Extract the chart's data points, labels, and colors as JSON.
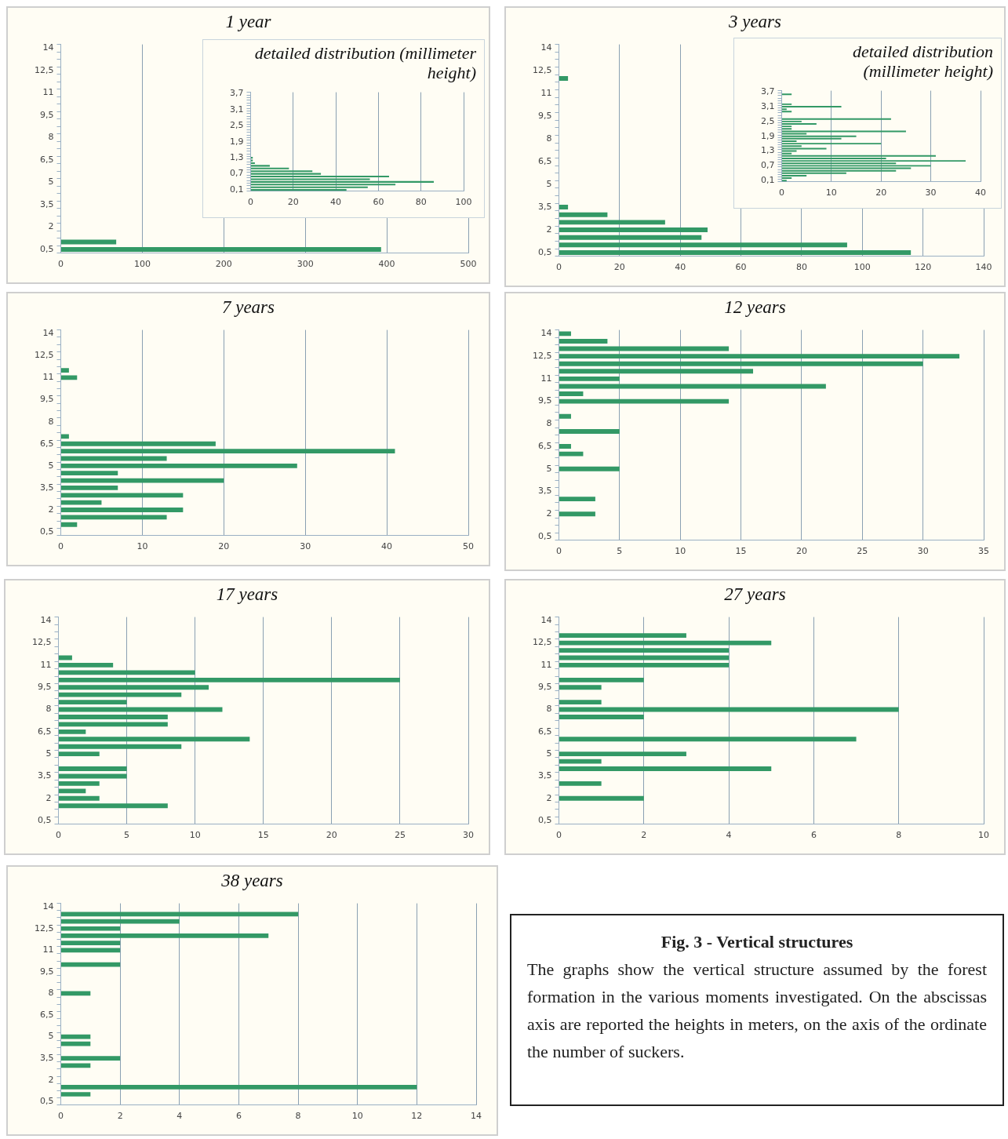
{
  "chart_data": [
    {
      "type": "bar",
      "orientation": "horizontal",
      "title": "1 year",
      "color": "#339966",
      "grid": "x",
      "xlim": [
        0,
        500
      ],
      "xticks": [
        0,
        100,
        200,
        300,
        400,
        500
      ],
      "categories": [
        "14",
        null,
        null,
        "12,5",
        null,
        null,
        "11",
        null,
        null,
        "9,5",
        null,
        null,
        "8",
        null,
        null,
        "6,5",
        null,
        null,
        "5",
        null,
        null,
        "3,5",
        null,
        null,
        "2",
        null,
        null,
        "0,5"
      ],
      "values": [
        0,
        0,
        0,
        0,
        0,
        0,
        0,
        0,
        0,
        0,
        0,
        0,
        0,
        0,
        0,
        0,
        0,
        0,
        0,
        0,
        0,
        0,
        0,
        0,
        0,
        0,
        68,
        393
      ]
    },
    {
      "type": "bar",
      "orientation": "horizontal",
      "title": "detailed distribution (millimeter height)",
      "color": "#339966",
      "grid": "x",
      "xlim": [
        0,
        100
      ],
      "xticks": [
        0,
        20,
        40,
        60,
        80,
        100
      ],
      "categories": [
        "3,7",
        null,
        null,
        null,
        null,
        null,
        "3,1",
        null,
        null,
        null,
        null,
        null,
        "2,5",
        null,
        null,
        null,
        null,
        null,
        "1,9",
        null,
        null,
        null,
        null,
        null,
        "1,3",
        null,
        null,
        null,
        null,
        null,
        "0,7",
        null,
        null,
        null,
        null,
        null,
        "0,1"
      ],
      "values": [
        0,
        0,
        0,
        0,
        0,
        0,
        0,
        0,
        0,
        0,
        0,
        0,
        0,
        0,
        0,
        0,
        0,
        0,
        0,
        0,
        0,
        0,
        0,
        0,
        1,
        1,
        2,
        9,
        18,
        29,
        33,
        65,
        56,
        86,
        68,
        55,
        45
      ]
    },
    {
      "type": "bar",
      "orientation": "horizontal",
      "title": "3 years",
      "color": "#339966",
      "grid": "x",
      "xlim": [
        0,
        140
      ],
      "xticks": [
        0,
        20,
        40,
        60,
        80,
        100,
        120,
        140
      ],
      "categories": [
        "14",
        null,
        null,
        "12,5",
        null,
        null,
        "11",
        null,
        null,
        "9,5",
        null,
        null,
        "8",
        null,
        null,
        "6,5",
        null,
        null,
        "5",
        null,
        null,
        "3,5",
        null,
        null,
        "2",
        null,
        null,
        "0,5"
      ],
      "values": [
        0,
        0,
        0,
        0,
        3,
        0,
        0,
        0,
        0,
        0,
        0,
        0,
        0,
        0,
        0,
        0,
        0,
        0,
        0,
        0,
        0,
        3,
        16,
        35,
        49,
        47,
        95,
        116
      ]
    },
    {
      "type": "bar",
      "orientation": "horizontal",
      "title": "detailed distribution (millimeter height)",
      "color": "#339966",
      "grid": "x",
      "xlim": [
        0,
        40
      ],
      "xticks": [
        0,
        10,
        20,
        30,
        40
      ],
      "categories": [
        "3,7",
        null,
        null,
        null,
        null,
        null,
        "3,1",
        null,
        null,
        null,
        null,
        null,
        "2,5",
        null,
        null,
        null,
        null,
        null,
        "1,9",
        null,
        null,
        null,
        null,
        null,
        "1,3",
        null,
        null,
        null,
        null,
        null,
        "0,7",
        null,
        null,
        null,
        null,
        null,
        "0,1"
      ],
      "values": [
        0,
        2,
        0,
        0,
        0,
        2,
        12,
        1,
        2,
        0,
        0,
        22,
        4,
        7,
        2,
        2,
        25,
        5,
        15,
        12,
        3,
        20,
        4,
        9,
        3,
        2,
        31,
        21,
        37,
        23,
        30,
        26,
        23,
        13,
        5,
        2,
        1
      ]
    },
    {
      "type": "bar",
      "orientation": "horizontal",
      "title": "7 years",
      "color": "#339966",
      "grid": "x",
      "xlim": [
        0,
        50
      ],
      "xticks": [
        0,
        10,
        20,
        30,
        40,
        50
      ],
      "categories": [
        "14",
        null,
        null,
        "12,5",
        null,
        null,
        "11",
        null,
        null,
        "9,5",
        null,
        null,
        "8",
        null,
        null,
        "6,5",
        null,
        null,
        "5",
        null,
        null,
        "3,5",
        null,
        null,
        "2",
        null,
        null,
        "0,5"
      ],
      "values": [
        0,
        0,
        0,
        0,
        0,
        1,
        2,
        0,
        0,
        0,
        0,
        0,
        0,
        0,
        1,
        19,
        41,
        13,
        29,
        7,
        20,
        7,
        15,
        5,
        15,
        13,
        2,
        0
      ]
    },
    {
      "type": "bar",
      "orientation": "horizontal",
      "title": "12  years",
      "color": "#339966",
      "grid": "x",
      "xlim": [
        0,
        35
      ],
      "xticks": [
        0,
        5,
        10,
        15,
        20,
        25,
        30,
        35
      ],
      "categories": [
        "14",
        null,
        null,
        "12,5",
        null,
        null,
        "11",
        null,
        null,
        "9,5",
        null,
        null,
        "8",
        null,
        null,
        "6,5",
        null,
        null,
        "5",
        null,
        null,
        "3,5",
        null,
        null,
        "2",
        null,
        null,
        "0,5"
      ],
      "values": [
        1,
        4,
        14,
        33,
        30,
        16,
        5,
        22,
        2,
        14,
        0,
        1,
        0,
        5,
        0,
        1,
        2,
        0,
        5,
        0,
        0,
        0,
        3,
        0,
        3,
        0,
        0,
        0
      ]
    },
    {
      "type": "bar",
      "orientation": "horizontal",
      "title": "17 years",
      "color": "#339966",
      "grid": "x",
      "xlim": [
        0,
        30
      ],
      "xticks": [
        0,
        5,
        10,
        15,
        20,
        25,
        30
      ],
      "categories": [
        "14",
        null,
        null,
        "12,5",
        null,
        null,
        "11",
        null,
        null,
        "9,5",
        null,
        null,
        "8",
        null,
        null,
        "6,5",
        null,
        null,
        "5",
        null,
        null,
        "3,5",
        null,
        null,
        "2",
        null,
        null,
        "0,5"
      ],
      "values": [
        0,
        0,
        0,
        0,
        0,
        1,
        4,
        10,
        25,
        11,
        9,
        5,
        12,
        8,
        8,
        2,
        14,
        9,
        3,
        0,
        5,
        5,
        3,
        2,
        3,
        8,
        0,
        0
      ]
    },
    {
      "type": "bar",
      "orientation": "horizontal",
      "title": "27 years",
      "color": "#339966",
      "grid": "x",
      "xlim": [
        0,
        10
      ],
      "xticks": [
        0,
        2,
        4,
        6,
        8,
        10
      ],
      "categories": [
        "14",
        null,
        null,
        "12,5",
        null,
        null,
        "11",
        null,
        null,
        "9,5",
        null,
        null,
        "8",
        null,
        null,
        "6,5",
        null,
        null,
        "5",
        null,
        null,
        "3,5",
        null,
        null,
        "2",
        null,
        null,
        "0,5"
      ],
      "values": [
        0,
        0,
        3,
        5,
        4,
        4,
        4,
        0,
        2,
        1,
        0,
        1,
        8,
        2,
        0,
        0,
        7,
        0,
        3,
        1,
        5,
        0,
        1,
        0,
        2,
        0,
        0,
        0
      ]
    },
    {
      "type": "bar",
      "orientation": "horizontal",
      "title": "38 years",
      "color": "#339966",
      "grid": "x",
      "xlim": [
        0,
        14
      ],
      "xticks": [
        0,
        2,
        4,
        6,
        8,
        10,
        12,
        14
      ],
      "categories": [
        "14",
        null,
        null,
        "12,5",
        null,
        null,
        "11",
        null,
        null,
        "9,5",
        null,
        null,
        "8",
        null,
        null,
        "6,5",
        null,
        null,
        "5",
        null,
        null,
        "3,5",
        null,
        null,
        "2",
        null,
        null,
        "0,5"
      ],
      "values": [
        0,
        8,
        4,
        2,
        7,
        2,
        2,
        0,
        2,
        0,
        0,
        0,
        1,
        0,
        0,
        0,
        0,
        0,
        1,
        1,
        0,
        2,
        1,
        0,
        0,
        12,
        1,
        0
      ]
    },
    {
      "type": "other",
      "title": "Fig. 3 -  Vertical structures",
      "annotations": [
        "The graphs show the vertical structure assumed by the forest formation in the various moments investigated. On the abscissas axis are reported the heights in meters, on the axis of the ordinate the number of suckers."
      ]
    }
  ]
}
